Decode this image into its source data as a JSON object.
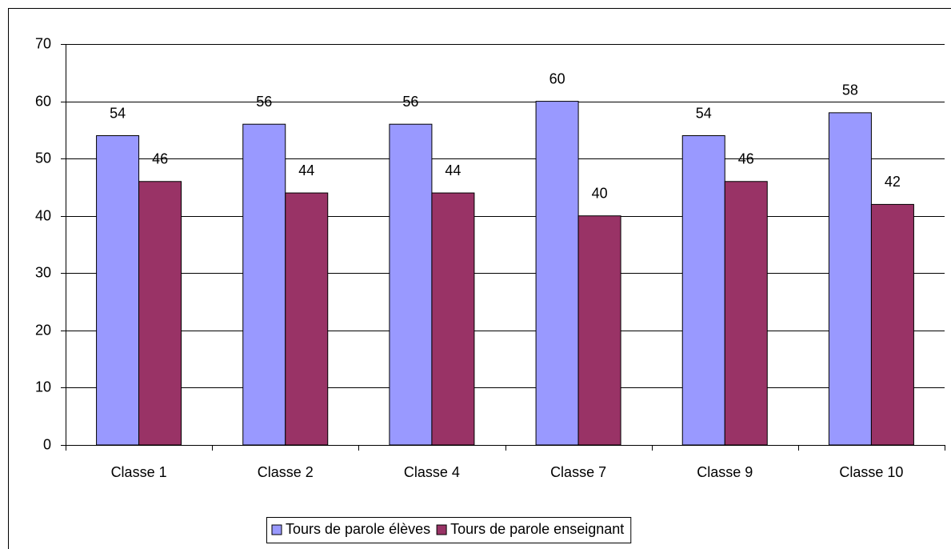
{
  "chart_data": {
    "type": "bar",
    "categories": [
      "Classe 1",
      "Classe 2",
      "Classe 4",
      "Classe 7",
      "Classe 9",
      "Classe 10"
    ],
    "series": [
      {
        "name": "Tours de parole élèves",
        "color": "#9999ff",
        "values": [
          54,
          56,
          56,
          60,
          54,
          58
        ]
      },
      {
        "name": "Tours de parole enseignant",
        "color": "#993366",
        "values": [
          46,
          44,
          44,
          40,
          46,
          42
        ]
      }
    ],
    "ylim": [
      0,
      70
    ],
    "yticks": [
      0,
      10,
      20,
      30,
      40,
      50,
      60,
      70
    ],
    "grid": true,
    "legend": "bottom"
  }
}
